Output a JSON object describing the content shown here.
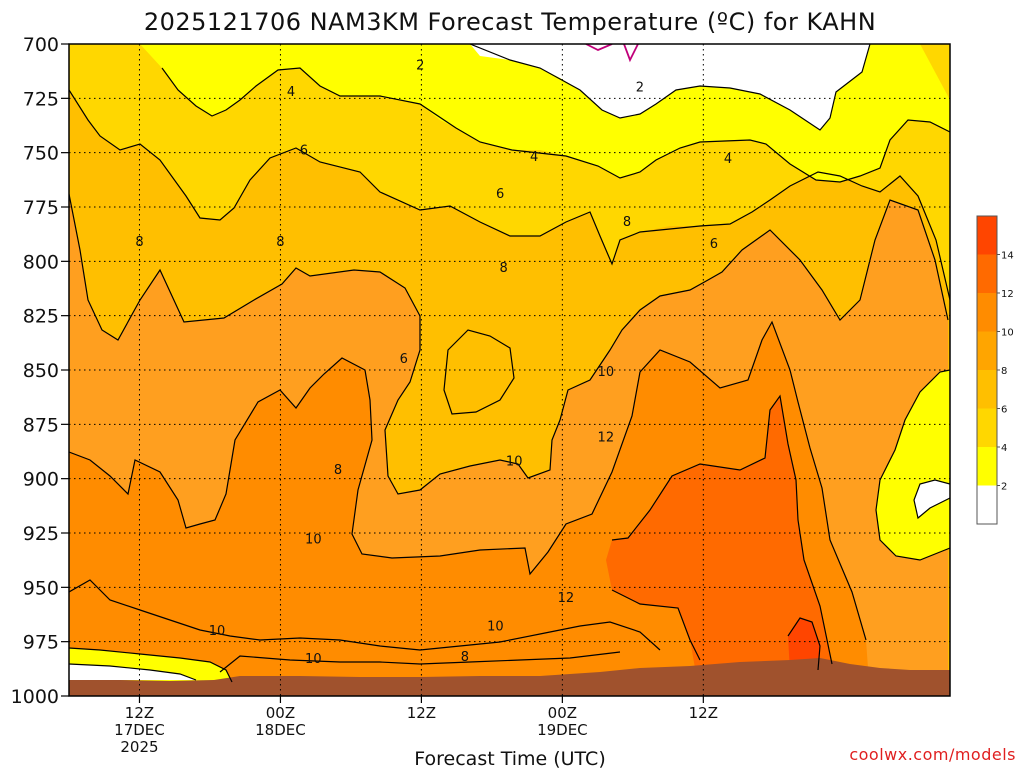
{
  "title": "2025121706 NAM3KM Forecast Temperature (ºC) for KAHN",
  "credit": "coolwx.com/models",
  "chart_data": {
    "type": "heatmap",
    "title": "2025121706 NAM3KM Forecast Temperature (ºC) for KAHN",
    "xlabel": "Forecast Time (UTC)",
    "ylabel": "",
    "y_axis": {
      "ticks": [
        700,
        725,
        750,
        775,
        800,
        825,
        850,
        875,
        900,
        925,
        950,
        975,
        1000
      ],
      "inverted": true,
      "ylim": [
        700,
        1000
      ]
    },
    "x_axis": {
      "range_hours": [
        6,
        81
      ],
      "ticks": [
        {
          "hour": 12,
          "lines": [
            "12Z",
            "17DEC",
            "2025"
          ]
        },
        {
          "hour": 24,
          "lines": [
            "00Z",
            "18DEC"
          ]
        },
        {
          "hour": 36,
          "lines": [
            "12Z"
          ]
        },
        {
          "hour": 48,
          "lines": [
            "00Z",
            "19DEC"
          ]
        },
        {
          "hour": 60,
          "lines": [
            "12Z"
          ]
        }
      ]
    },
    "grid": true,
    "contour_levels": [
      2,
      4,
      6,
      8,
      10,
      12,
      14
    ],
    "colorbar": {
      "ticks": [
        2,
        4,
        6,
        8,
        10,
        12,
        14
      ],
      "colors": [
        "#ffffff",
        "#ffff00",
        "#ffd700",
        "#ffbf00",
        "#ffa500",
        "#ff8c00",
        "#ff6a00",
        "#ff4500"
      ]
    },
    "contour_labels": [
      {
        "value": "2",
        "hour": 35.9,
        "p": 710
      },
      {
        "value": "2",
        "hour": 54.6,
        "p": 720
      },
      {
        "value": "4",
        "hour": 24.9,
        "p": 722
      },
      {
        "value": "4",
        "hour": 45.6,
        "p": 752
      },
      {
        "value": "4",
        "hour": 62.1,
        "p": 753
      },
      {
        "value": "6",
        "hour": 26.0,
        "p": 749
      },
      {
        "value": "6",
        "hour": 42.7,
        "p": 769
      },
      {
        "value": "6",
        "hour": 60.9,
        "p": 792
      },
      {
        "value": "8",
        "hour": 12.0,
        "p": 791
      },
      {
        "value": "8",
        "hour": 24.0,
        "p": 791
      },
      {
        "value": "8",
        "hour": 43.0,
        "p": 803
      },
      {
        "value": "8",
        "hour": 53.5,
        "p": 782
      },
      {
        "value": "6",
        "hour": 34.5,
        "p": 845
      },
      {
        "value": "8",
        "hour": 28.9,
        "p": 896
      },
      {
        "value": "8",
        "hour": 39.7,
        "p": 982
      },
      {
        "value": "10",
        "hour": 26.8,
        "p": 928
      },
      {
        "value": "10",
        "hour": 43.9,
        "p": 892
      },
      {
        "value": "10",
        "hour": 51.7,
        "p": 851
      },
      {
        "value": "10",
        "hour": 18.6,
        "p": 970
      },
      {
        "value": "10",
        "hour": 42.3,
        "p": 968
      },
      {
        "value": "10",
        "hour": 26.8,
        "p": 983
      },
      {
        "value": "12",
        "hour": 51.7,
        "p": 881
      },
      {
        "value": "12",
        "hour": 48.3,
        "p": 955
      }
    ]
  }
}
